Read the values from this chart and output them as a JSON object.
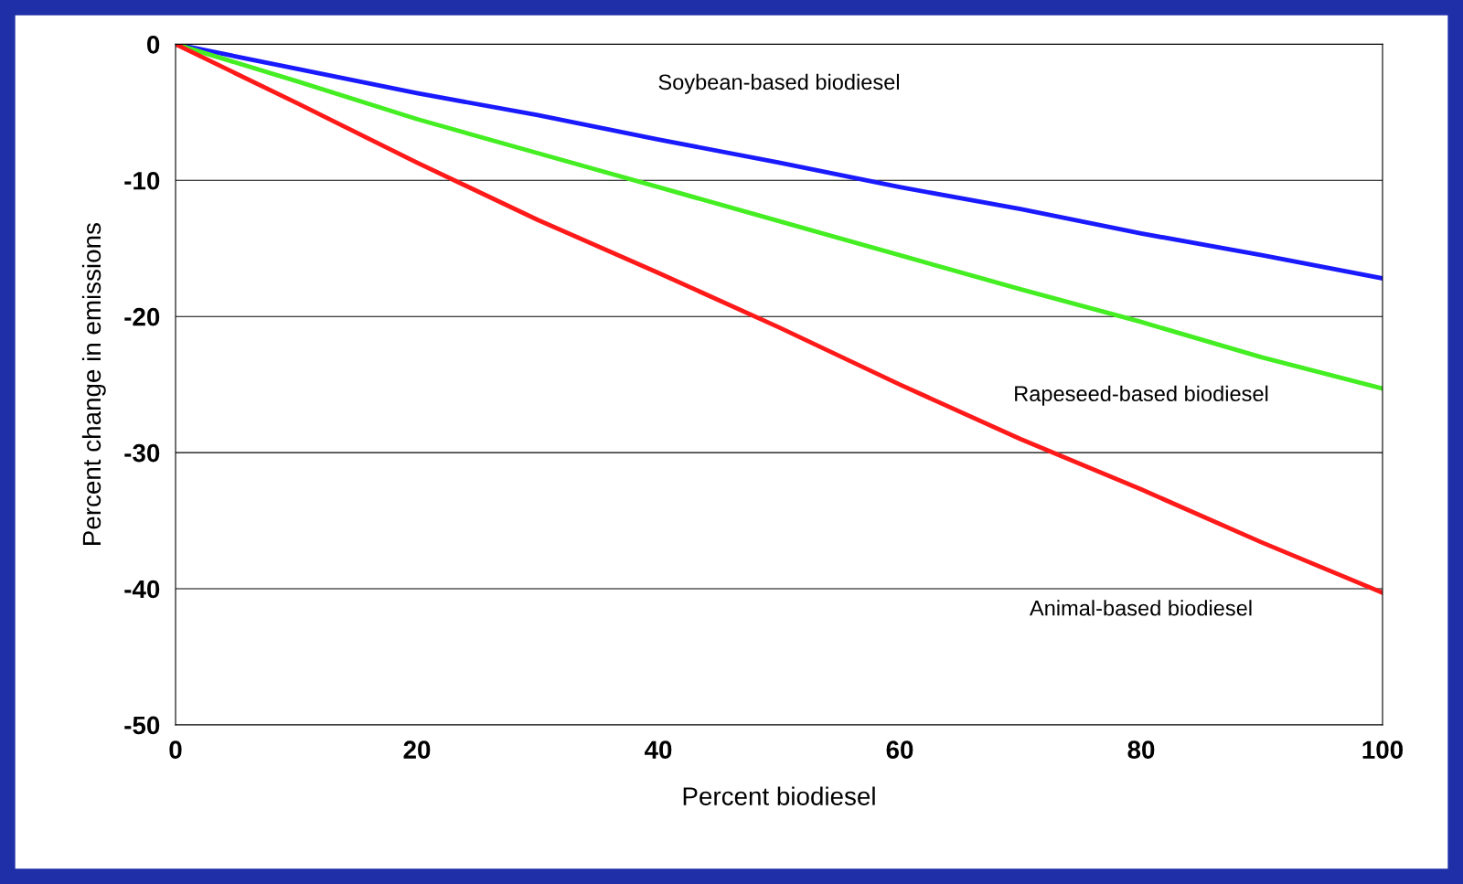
{
  "chart_data": {
    "type": "line",
    "xlabel": "Percent biodiesel",
    "ylabel": "Percent change in emissions",
    "x": [
      0,
      10,
      20,
      30,
      40,
      50,
      60,
      70,
      80,
      90,
      100
    ],
    "series": [
      {
        "name": "Soybean-based biodiesel",
        "color": "#1a1aff",
        "values": [
          0,
          -1.8,
          -3.6,
          -5.2,
          -7.0,
          -8.7,
          -10.5,
          -12.1,
          -13.9,
          -15.5,
          -17.2
        ]
      },
      {
        "name": "Rapeseed-based biodiesel",
        "color": "#44ee22",
        "values": [
          0,
          -2.7,
          -5.5,
          -8.0,
          -10.5,
          -13.0,
          -15.5,
          -18.0,
          -20.4,
          -23.0,
          -25.3
        ]
      },
      {
        "name": "Animal-based biodiesel",
        "color": "#ff1a1a",
        "values": [
          0,
          -4.3,
          -8.7,
          -12.9,
          -16.8,
          -20.8,
          -25.0,
          -29.0,
          -32.7,
          -36.6,
          -40.3
        ]
      }
    ],
    "xlim": [
      0,
      100
    ],
    "ylim": [
      -50,
      0
    ],
    "xticks": [
      0,
      20,
      40,
      60,
      80,
      100
    ],
    "yticks": [
      0,
      -10,
      -20,
      -30,
      -40,
      -50
    ],
    "grid": "y",
    "legend": false,
    "marker": "none",
    "line_style": "solid"
  }
}
